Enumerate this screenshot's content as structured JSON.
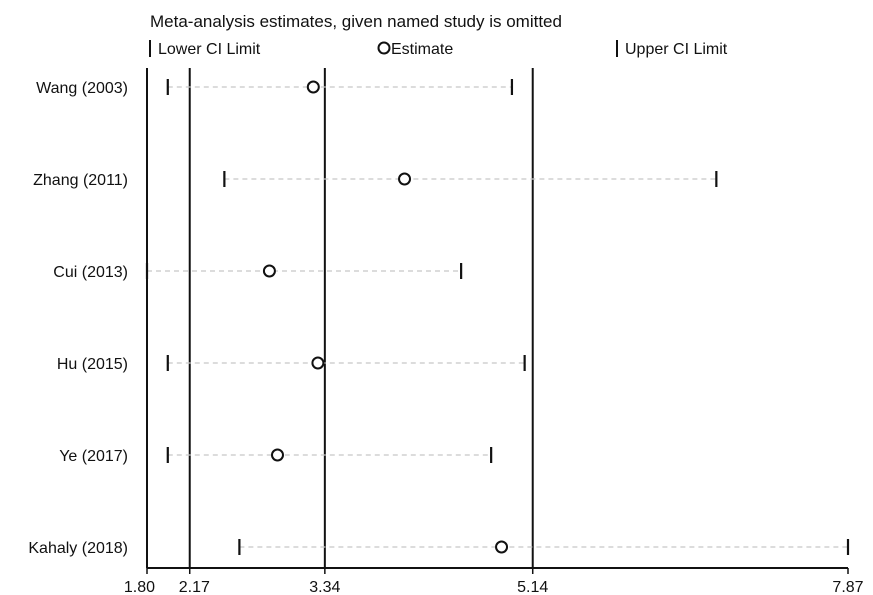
{
  "chart_data": {
    "type": "scatter",
    "title": "Meta-analysis estimates, given named study is omitted",
    "legend": {
      "lower": "Lower CI Limit",
      "estimate": "Estimate",
      "upper": "Upper CI Limit",
      "placement": "top"
    },
    "studies": [
      {
        "name": "Wang (2003)",
        "lower": 1.98,
        "estimate": 3.24,
        "upper": 4.96
      },
      {
        "name": "Zhang (2011)",
        "lower": 2.47,
        "estimate": 4.03,
        "upper": 6.73
      },
      {
        "name": "Cui (2013)",
        "lower": 1.8,
        "estimate": 2.86,
        "upper": 4.52
      },
      {
        "name": "Hu (2015)",
        "lower": 1.98,
        "estimate": 3.28,
        "upper": 5.07
      },
      {
        "name": "Ye (2017)",
        "lower": 1.98,
        "estimate": 2.93,
        "upper": 4.78
      },
      {
        "name": "Kahaly (2018)",
        "lower": 2.6,
        "estimate": 4.87,
        "upper": 7.87
      }
    ],
    "xticks": [
      {
        "value": 1.8,
        "label": "1.80"
      },
      {
        "value": 2.17,
        "label": "2.17"
      },
      {
        "value": 3.34,
        "label": "3.34"
      },
      {
        "value": 5.14,
        "label": "5.14"
      },
      {
        "value": 7.87,
        "label": "7.87"
      }
    ],
    "reference_lines": [
      2.17,
      3.34,
      5.14
    ],
    "xlim": [
      1.8,
      7.87
    ],
    "grid": false
  }
}
